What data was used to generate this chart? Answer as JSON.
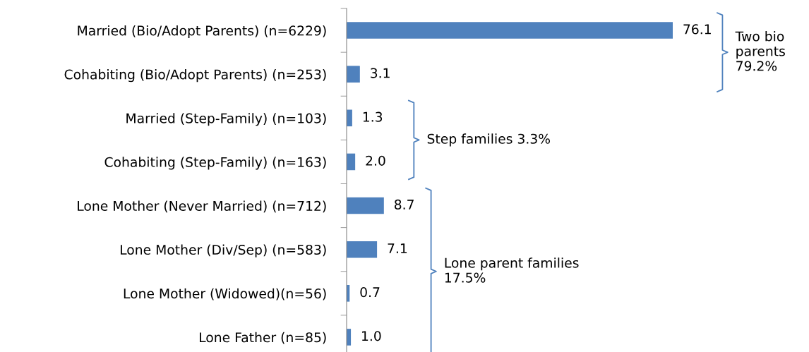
{
  "chart_data": {
    "type": "bar",
    "orientation": "horizontal",
    "data_labels": true,
    "categories": [
      "Married (Bio/Adopt Parents) (n=6229)",
      "Cohabiting (Bio/Adopt Parents) (n=253)",
      "Married (Step-Family) (n=103)",
      "Cohabiting (Step-Family) (n=163)",
      "Lone Mother (Never Married) (n=712)",
      "Lone Mother (Div/Sep) (n=583)",
      "Lone Mother (Widowed)(n=56)",
      "Lone Father (n=85)"
    ],
    "values": [
      76.1,
      3.1,
      1.3,
      2.0,
      8.7,
      7.1,
      0.7,
      1.0
    ],
    "value_labels": [
      "76.1",
      "3.1",
      "1.3",
      "2.0",
      "8.7",
      "7.1",
      "0.7",
      "1.0"
    ],
    "color": "#4f81bd",
    "annotations": [
      "Two bio\nparents\n79.2%",
      "Step families 3.3%",
      "Lone parent families\n17.5%"
    ]
  }
}
